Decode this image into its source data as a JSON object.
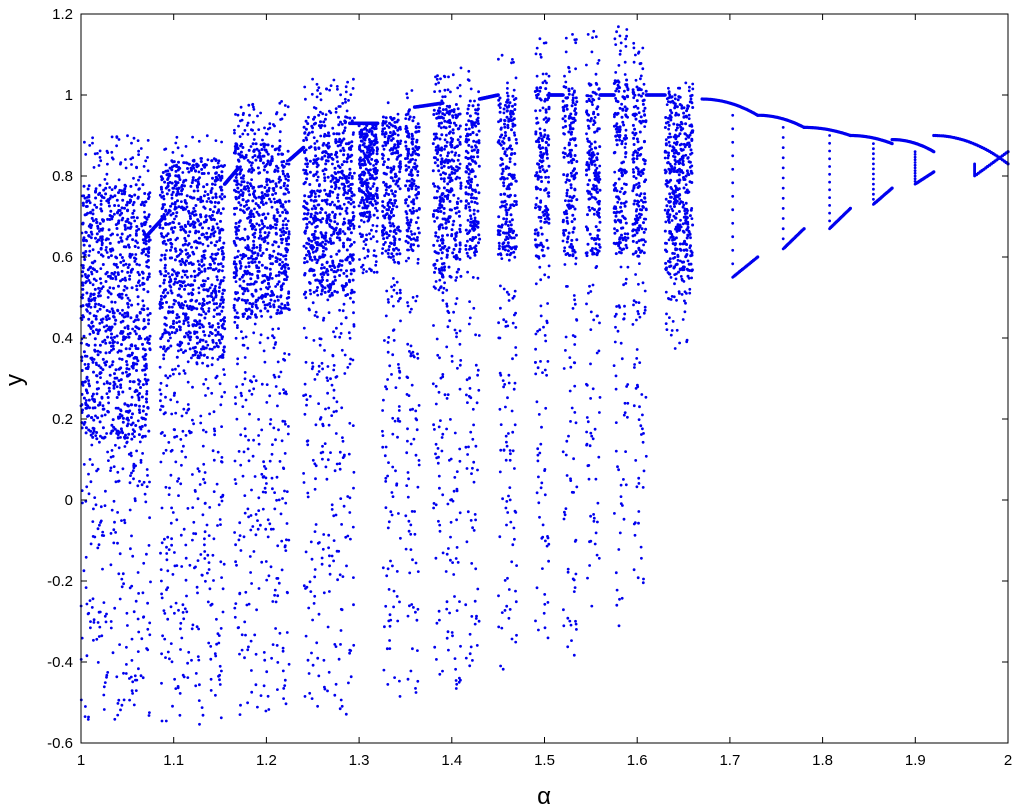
{
  "chart_data": {
    "type": "scatter",
    "title": "",
    "xlabel": "α",
    "ylabel": "y",
    "xlim": [
      1,
      2
    ],
    "ylim": [
      -0.6,
      1.2
    ],
    "x_ticks": [
      1,
      1.1,
      1.2,
      1.3,
      1.4,
      1.5,
      1.6,
      1.7,
      1.8,
      1.9,
      2
    ],
    "x_tick_labels": [
      "1",
      "1.1",
      "1.2",
      "1.3",
      "1.4",
      "1.5",
      "1.6",
      "1.7",
      "1.8",
      "1.9",
      "2"
    ],
    "y_ticks": [
      -0.6,
      -0.4,
      -0.2,
      0,
      0.2,
      0.4,
      0.6,
      0.8,
      1,
      1.2
    ],
    "y_tick_labels": [
      "-0.6",
      "-0.4",
      "-0.2",
      "0",
      "0.2",
      "0.4",
      "0.6",
      "0.8",
      "1",
      "1.2"
    ],
    "grid": false,
    "legend": "none",
    "marker_color": "#0000ee",
    "chaotic_bands": [
      {
        "x": [
          1.0,
          1.075
        ],
        "y": [
          -0.55,
          0.9
        ],
        "dense": [
          0.15,
          0.78
        ]
      },
      {
        "x": [
          1.085,
          1.155
        ],
        "y": [
          -0.56,
          0.9
        ],
        "dense": [
          0.35,
          0.84
        ]
      },
      {
        "x": [
          1.165,
          1.225
        ],
        "y": [
          -0.55,
          0.99
        ],
        "dense": [
          0.45,
          0.88
        ]
      },
      {
        "x": [
          1.24,
          1.295
        ],
        "y": [
          -0.53,
          1.04
        ],
        "dense": [
          0.5,
          0.95
        ]
      },
      {
        "x": [
          1.3,
          1.32
        ],
        "y": [
          0.55,
          0.93
        ],
        "dense": [
          0.7,
          0.93
        ]
      },
      {
        "x": [
          1.325,
          1.345
        ],
        "y": [
          -0.5,
          1.03
        ],
        "dense": [
          0.6,
          0.95
        ]
      },
      {
        "x": [
          1.35,
          1.365
        ],
        "y": [
          -0.48,
          1.02
        ],
        "dense": [
          0.6,
          0.97
        ]
      },
      {
        "x": [
          1.38,
          1.41
        ],
        "y": [
          -0.47,
          1.08
        ],
        "dense": [
          0.55,
          0.98
        ]
      },
      {
        "x": [
          1.415,
          1.43
        ],
        "y": [
          -0.45,
          1.09
        ],
        "dense": [
          0.6,
          0.99
        ]
      },
      {
        "x": [
          1.45,
          1.47
        ],
        "y": [
          -0.43,
          1.1
        ],
        "dense": [
          0.6,
          1.0
        ]
      },
      {
        "x": [
          1.49,
          1.505
        ],
        "y": [
          -0.42,
          1.15
        ],
        "dense": [
          0.6,
          1.02
        ]
      },
      {
        "x": [
          1.52,
          1.535
        ],
        "y": [
          -0.4,
          1.15
        ],
        "dense": [
          0.6,
          1.03
        ]
      },
      {
        "x": [
          1.545,
          1.56
        ],
        "y": [
          -0.35,
          1.16
        ],
        "dense": [
          0.6,
          1.03
        ]
      },
      {
        "x": [
          1.575,
          1.59
        ],
        "y": [
          -0.32,
          1.17
        ],
        "dense": [
          0.6,
          1.04
        ]
      },
      {
        "x": [
          1.595,
          1.61
        ],
        "y": [
          -0.25,
          1.15
        ],
        "dense": [
          0.6,
          1.02
        ]
      },
      {
        "x": [
          1.63,
          1.66
        ],
        "y": [
          0.37,
          1.03
        ],
        "dense": [
          0.55,
          1.0
        ]
      }
    ],
    "periodic_segments": [
      {
        "x": [
          1.07,
          1.09
        ],
        "y_start": 0.65,
        "y_end": 0.7
      },
      {
        "x": [
          1.155,
          1.17
        ],
        "y_start": 0.78,
        "y_end": 0.82
      },
      {
        "x": [
          1.225,
          1.24
        ],
        "y_start": 0.84,
        "y_end": 0.87
      },
      {
        "x": [
          1.29,
          1.32
        ],
        "y_start": 0.93,
        "y_end": 0.93
      },
      {
        "x": [
          1.36,
          1.39
        ],
        "y_start": 0.97,
        "y_end": 0.98
      },
      {
        "x": [
          1.43,
          1.45
        ],
        "y_start": 0.99,
        "y_end": 1.0
      },
      {
        "x": [
          1.505,
          1.52
        ],
        "y_start": 1.0,
        "y_end": 1.0
      },
      {
        "x": [
          1.56,
          1.575
        ],
        "y_start": 1.0,
        "y_end": 1.0
      },
      {
        "x": [
          1.61,
          1.63
        ],
        "y_start": 1.0,
        "y_end": 1.0
      }
    ],
    "windows": [
      {
        "x": [
          1.67,
          1.73
        ],
        "upper": [
          0.95,
          0.99
        ],
        "lower": [
          0.55,
          0.6
        ]
      },
      {
        "x": [
          1.73,
          1.78
        ],
        "upper": [
          0.92,
          0.95
        ],
        "lower": [
          0.62,
          0.67
        ]
      },
      {
        "x": [
          1.78,
          1.83
        ],
        "upper": [
          0.9,
          0.92
        ],
        "lower": [
          0.67,
          0.72
        ]
      },
      {
        "x": [
          1.83,
          1.875
        ],
        "upper": [
          0.88,
          0.9
        ],
        "lower": [
          0.73,
          0.77
        ]
      },
      {
        "x": [
          1.875,
          1.92
        ],
        "upper": [
          0.86,
          0.89
        ],
        "lower": [
          0.78,
          0.81
        ]
      },
      {
        "x": [
          1.92,
          2.0
        ],
        "upper": [
          0.83,
          0.9
        ],
        "lower": [
          0.8,
          0.86
        ]
      }
    ]
  }
}
